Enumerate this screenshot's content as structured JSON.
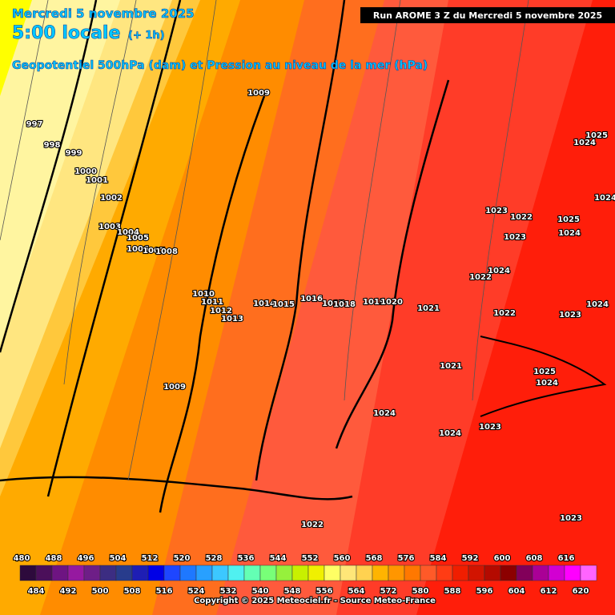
{
  "header": {
    "date": "Mercredi 5 novembre 2025",
    "time": "5:00 locale",
    "offset": "(+ 1h)",
    "subtitle": "Geopotentiel 500hPa (dam) et Pression au niveau de la mer (hPa)",
    "run": "Run AROME 3 Z du Mercredi 5 novembre 2025"
  },
  "pressure_labels": [
    "997",
    "998",
    "999",
    "1000",
    "1001",
    "1002",
    "1003",
    "1004",
    "1005",
    "1006",
    "1007",
    "1008",
    "1009",
    "1010",
    "1011",
    "1012",
    "1013",
    "1014",
    "1015",
    "1016",
    "1017",
    "1018",
    "1019",
    "1020",
    "1021",
    "1009",
    "1023",
    "1022",
    "1025",
    "1024",
    "1023",
    "1024",
    "1025",
    "1024",
    "1024",
    "1022",
    "1022",
    "1023",
    "1024",
    "1021",
    "1025",
    "1024",
    "1024",
    "1024",
    "1023",
    "1022",
    "1023"
  ],
  "legend": {
    "top_labels": [
      "480",
      "488",
      "496",
      "504",
      "512",
      "520",
      "528",
      "536",
      "544",
      "552",
      "560",
      "568",
      "576",
      "584",
      "592",
      "600",
      "608",
      "616"
    ],
    "bottom_labels": [
      "484",
      "492",
      "500",
      "508",
      "516",
      "524",
      "532",
      "540",
      "548",
      "556",
      "564",
      "572",
      "580",
      "588",
      "596",
      "604",
      "612",
      "620"
    ],
    "colors": [
      "#2d0a3c",
      "#4b0f5a",
      "#6e1482",
      "#9619a0",
      "#6e1e87",
      "#3c2d82",
      "#283c8c",
      "#1e1eb4",
      "#0000e6",
      "#1e46ff",
      "#1e78ff",
      "#28a0ff",
      "#3cc8ff",
      "#50f0f0",
      "#64ffb4",
      "#78ff78",
      "#96f03c",
      "#c8f000",
      "#f0f000",
      "#ffff64",
      "#ffe678",
      "#ffd250",
      "#ffb400",
      "#ff9600",
      "#ff7800",
      "#ff5a28",
      "#ff3c14",
      "#f01e00",
      "#d21400",
      "#b40a00",
      "#8c0000",
      "#82005a",
      "#aa0096",
      "#d200d2",
      "#ff00ff",
      "#ff64ff"
    ]
  },
  "copyright": "Copyright © 2025 Meteociel.fr - Source Meteo-France"
}
